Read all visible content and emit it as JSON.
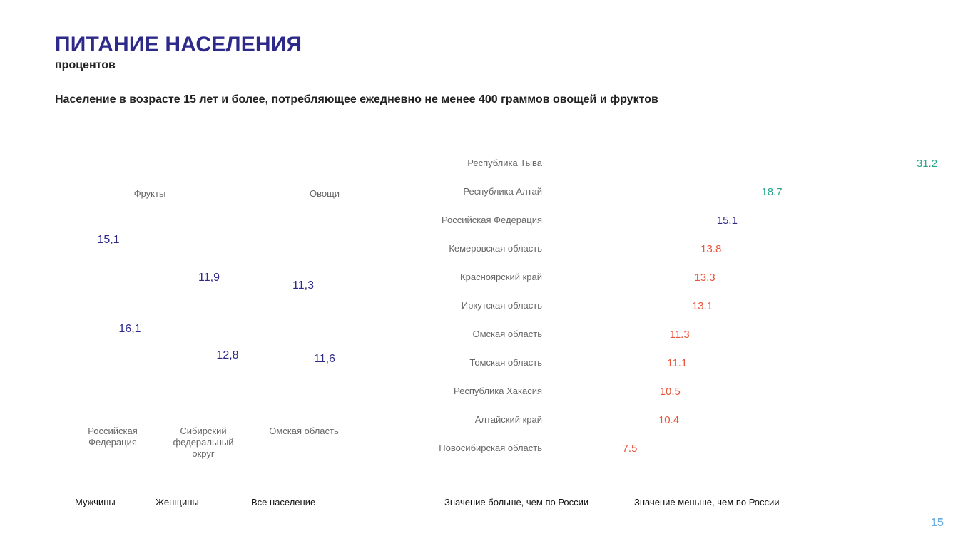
{
  "header": {
    "title": "ПИТАНИЕ НАСЕЛЕНИЯ",
    "unit": "процентов",
    "subtitle": "Население в возрасте 15 лет и более, потребляющее ежедневно не менее 400 граммов овощей и фруктов"
  },
  "colors": {
    "title": "#2e2a8a",
    "value_navy": "#2e2a8a",
    "value_teal": "#2aa58c",
    "value_red": "#e8553a",
    "label_gray": "#666666",
    "page_number": "#6aaee4"
  },
  "chart_data": [
    {
      "type": "bar",
      "group_labels": [
        "Фрукты",
        "Овощи"
      ],
      "categories": [
        "Российская Федерация",
        "Сибирский федеральный округ",
        "Омская область"
      ],
      "series": [
        {
          "name": "Мужчины",
          "values": [
            "15,1",
            "11,9",
            "11,3"
          ]
        },
        {
          "name": "Женщины",
          "values": [
            "16,1",
            "12,8",
            "11,6"
          ]
        }
      ],
      "legend": [
        "Мужчины",
        "Женщины",
        "Все население"
      ]
    },
    {
      "type": "bar",
      "orientation": "horizontal",
      "categories": [
        "Республика Тыва",
        "Республика Алтай",
        "Российская Федерация",
        "Кемеровская область",
        "Красноярский край",
        "Иркутская область",
        "Омская область",
        "Томская область",
        "Республика Хакасия",
        "Алтайский край",
        "Новосибирская область"
      ],
      "values": [
        31.2,
        18.7,
        15.1,
        13.8,
        13.3,
        13.1,
        11.3,
        11.1,
        10.5,
        10.4,
        7.5
      ],
      "value_labels": [
        "31.2",
        "18.7",
        "15.1",
        "13.8",
        "13.3",
        "13.1",
        "11.3",
        "11.1",
        "10.5",
        "10.4",
        "7.5"
      ],
      "status": [
        "above",
        "above",
        "reference",
        "below",
        "below",
        "below",
        "below",
        "below",
        "below",
        "below",
        "below"
      ],
      "legend": [
        "Значение больше, чем по России",
        "Значение меньше, чем по России"
      ]
    }
  ],
  "page_number": "15"
}
